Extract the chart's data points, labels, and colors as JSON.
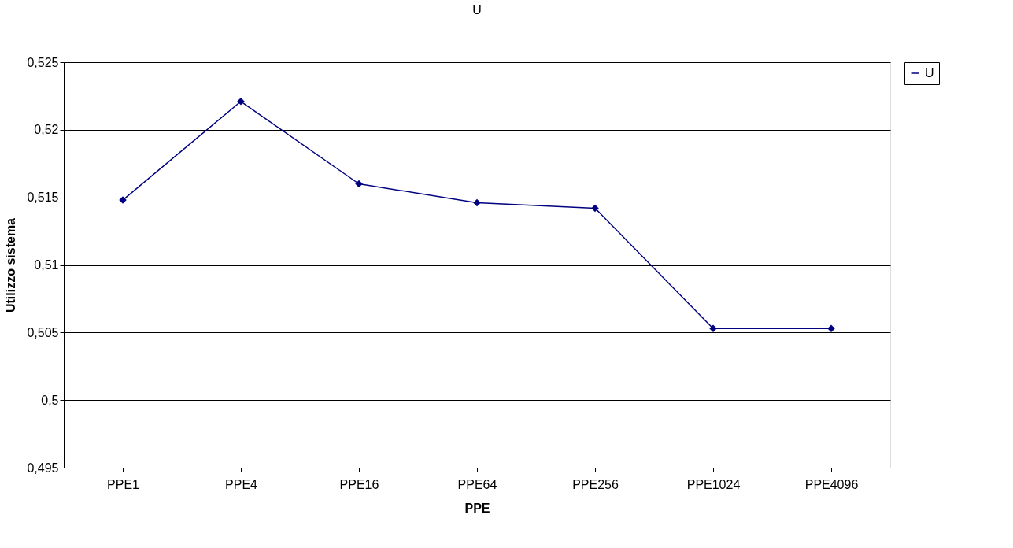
{
  "chart_data": {
    "type": "line",
    "title": "U",
    "xlabel": "PPE",
    "ylabel": "Utilizzo sistema",
    "categories": [
      "PPE1",
      "PPE4",
      "PPE16",
      "PPE64",
      "PPE256",
      "PPE1024",
      "PPE4096"
    ],
    "series": [
      {
        "name": "U",
        "color": "#000080",
        "values": [
          0.5148,
          0.5221,
          0.516,
          0.5146,
          0.5142,
          0.5053,
          0.5053
        ]
      }
    ],
    "ylim": [
      0.495,
      0.525
    ],
    "yticks": [
      {
        "value": 0.495,
        "label": "0,495"
      },
      {
        "value": 0.5,
        "label": "0,5"
      },
      {
        "value": 0.505,
        "label": "0,505"
      },
      {
        "value": 0.51,
        "label": "0,51"
      },
      {
        "value": 0.515,
        "label": "0,515"
      },
      {
        "value": 0.52,
        "label": "0,52"
      },
      {
        "value": 0.525,
        "label": "0,525"
      }
    ],
    "grid": "y",
    "legend": "right",
    "marker": "diamond",
    "line_style": "solid"
  }
}
